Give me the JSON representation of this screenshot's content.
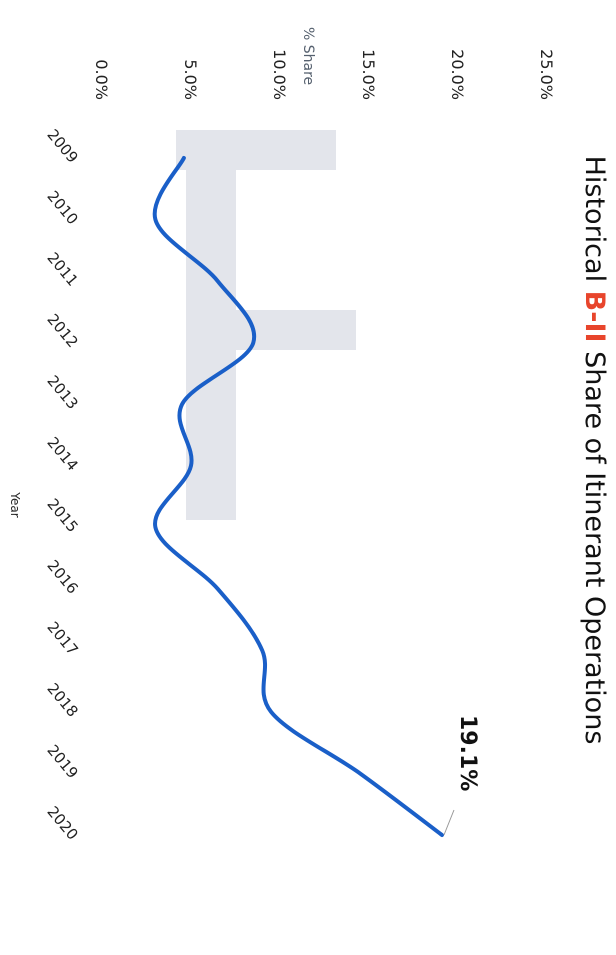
{
  "chart_data": {
    "type": "line",
    "title_parts": {
      "prefix": "Historical ",
      "highlight": "B-II",
      "suffix": " Share of Itinerant Operations"
    },
    "title_highlight_color": "#e8452c",
    "xlabel": "Year",
    "ylabel": "% Share",
    "x": [
      "2009",
      "2010",
      "2011",
      "2012",
      "2013",
      "2014",
      "2015",
      "2016",
      "2017",
      "2018",
      "2019",
      "2020"
    ],
    "y_ticks": [
      "0.0%",
      "5.0%",
      "10.0%",
      "15.0%",
      "20.0%",
      "25.0%"
    ],
    "ylim": [
      0,
      25
    ],
    "series": [
      {
        "values": [
          4.6,
          3.0,
          6.5,
          8.5,
          4.5,
          5.0,
          3.0,
          6.5,
          9.0,
          9.5,
          14.5,
          19.1
        ],
        "color": "#1a5fc8"
      }
    ],
    "end_label": "19.1%",
    "grid": false,
    "legend": "none",
    "orientation": "rotated-90-clockwise"
  }
}
